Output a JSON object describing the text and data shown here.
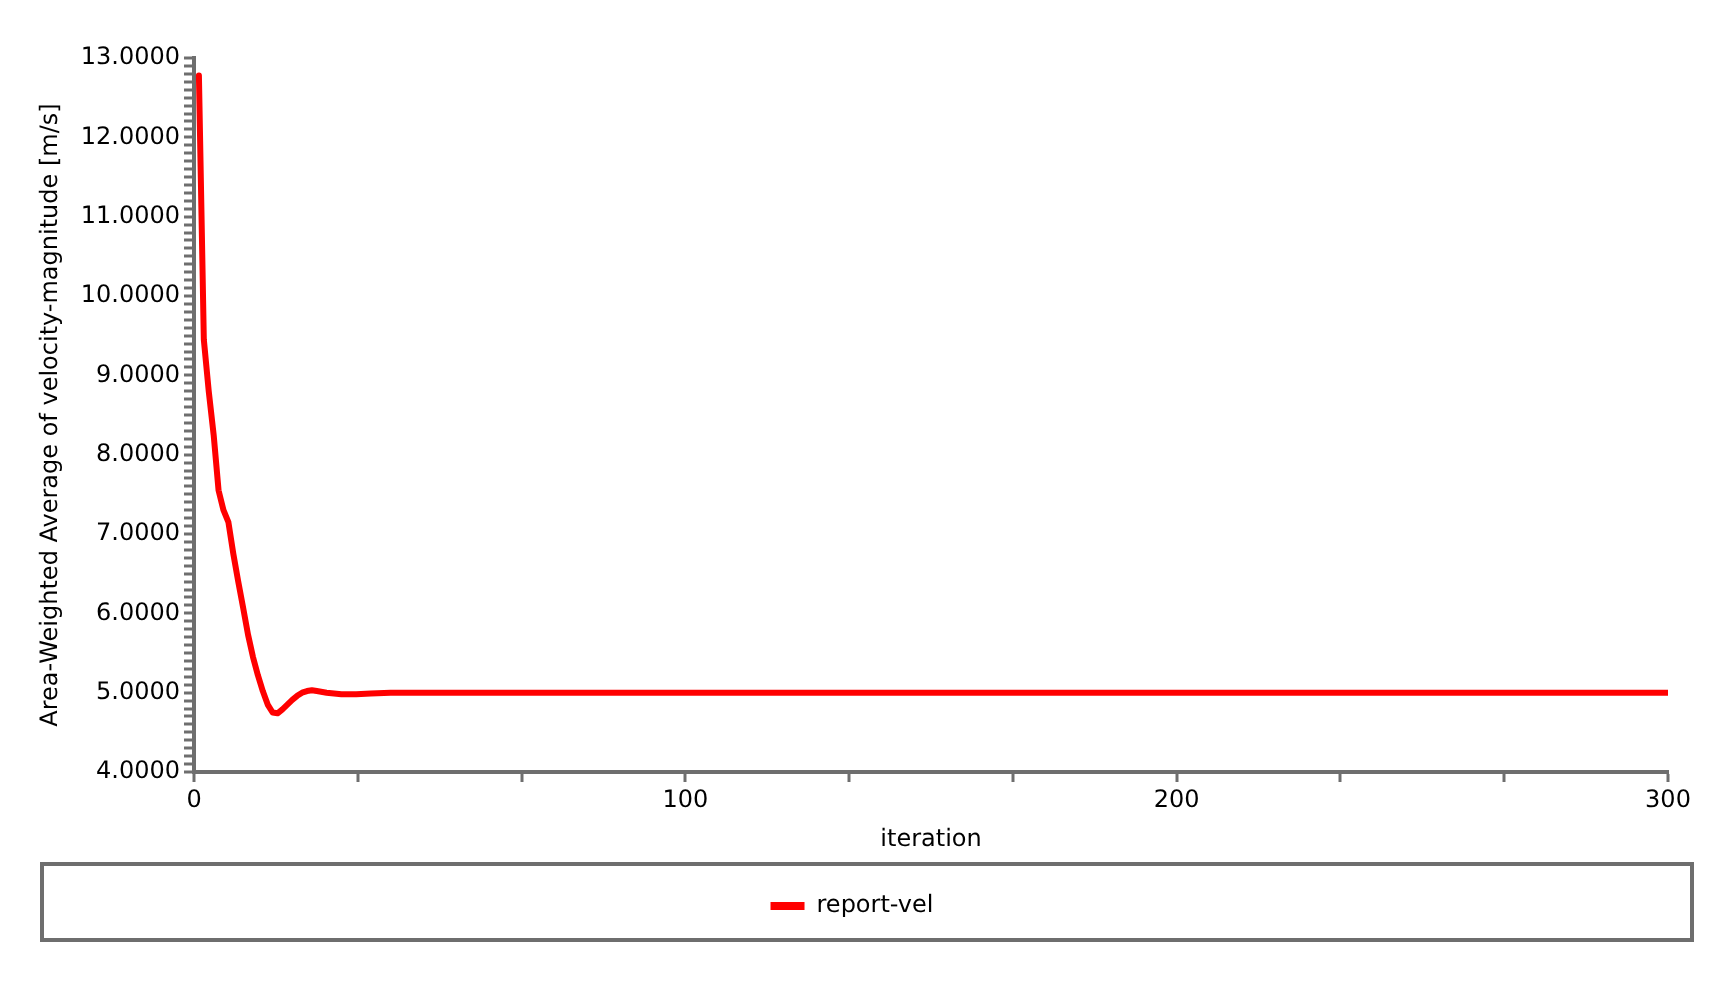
{
  "chart_data": {
    "type": "line",
    "xlabel": "iteration",
    "ylabel": "Area-Weighted Average of velocity-magnitude [m/s]",
    "x": [
      1,
      2,
      3,
      4,
      5,
      6,
      7,
      8,
      9,
      10,
      11,
      12,
      13,
      14,
      15,
      16,
      17,
      18,
      19,
      20,
      21,
      22,
      23,
      24,
      25,
      27,
      30,
      33,
      36,
      40,
      50,
      100,
      150,
      200,
      250,
      300
    ],
    "series": [
      {
        "name": "report-vel",
        "color": "#ff0000",
        "values": [
          12.78,
          9.45,
          8.8,
          8.25,
          7.55,
          7.3,
          7.15,
          6.75,
          6.4,
          6.07,
          5.73,
          5.45,
          5.22,
          5.02,
          4.85,
          4.75,
          4.74,
          4.79,
          4.85,
          4.91,
          4.96,
          5.0,
          5.02,
          5.03,
          5.02,
          5.0,
          4.98,
          4.98,
          4.99,
          5.0,
          5.0,
          5.0,
          5.0,
          5.0,
          5.0,
          5.0
        ]
      }
    ],
    "xlim": [
      0,
      300
    ],
    "xticks": [
      0,
      {
        "value": 33.3,
        "label": null
      },
      {
        "value": 66.7,
        "label": null
      },
      100,
      {
        "value": 133.3,
        "label": null
      },
      {
        "value": 166.7,
        "label": null
      },
      200,
      {
        "value": 233.3,
        "label": null
      },
      {
        "value": 266.7,
        "label": null
      },
      300
    ],
    "ylim": [
      4,
      13
    ],
    "yticks": [
      {
        "value": 4,
        "label": "4.0000"
      },
      {
        "value": 4.1,
        "label": null
      },
      {
        "value": 4.2,
        "label": null
      },
      {
        "value": 4.3,
        "label": null
      },
      {
        "value": 4.4,
        "label": null
      },
      {
        "value": 4.5,
        "label": null
      },
      {
        "value": 4.6,
        "label": null
      },
      {
        "value": 4.7,
        "label": null
      },
      {
        "value": 4.8,
        "label": null
      },
      {
        "value": 4.9,
        "label": null
      },
      {
        "value": 5,
        "label": "5.0000"
      },
      {
        "value": 5.1,
        "label": null
      },
      {
        "value": 5.2,
        "label": null
      },
      {
        "value": 5.3,
        "label": null
      },
      {
        "value": 5.4,
        "label": null
      },
      {
        "value": 5.5,
        "label": null
      },
      {
        "value": 5.6,
        "label": null
      },
      {
        "value": 5.7,
        "label": null
      },
      {
        "value": 5.8,
        "label": null
      },
      {
        "value": 5.9,
        "label": null
      },
      {
        "value": 6,
        "label": "6.0000"
      },
      {
        "value": 6.1,
        "label": null
      },
      {
        "value": 6.2,
        "label": null
      },
      {
        "value": 6.3,
        "label": null
      },
      {
        "value": 6.4,
        "label": null
      },
      {
        "value": 6.5,
        "label": null
      },
      {
        "value": 6.6,
        "label": null
      },
      {
        "value": 6.7,
        "label": null
      },
      {
        "value": 6.8,
        "label": null
      },
      {
        "value": 6.9,
        "label": null
      },
      {
        "value": 7,
        "label": "7.0000"
      },
      {
        "value": 7.1,
        "label": null
      },
      {
        "value": 7.2,
        "label": null
      },
      {
        "value": 7.3,
        "label": null
      },
      {
        "value": 7.4,
        "label": null
      },
      {
        "value": 7.5,
        "label": null
      },
      {
        "value": 7.6,
        "label": null
      },
      {
        "value": 7.7,
        "label": null
      },
      {
        "value": 7.8,
        "label": null
      },
      {
        "value": 7.9,
        "label": null
      },
      {
        "value": 8,
        "label": "8.0000"
      },
      {
        "value": 8.1,
        "label": null
      },
      {
        "value": 8.2,
        "label": null
      },
      {
        "value": 8.3,
        "label": null
      },
      {
        "value": 8.4,
        "label": null
      },
      {
        "value": 8.5,
        "label": null
      },
      {
        "value": 8.6,
        "label": null
      },
      {
        "value": 8.7,
        "label": null
      },
      {
        "value": 8.8,
        "label": null
      },
      {
        "value": 8.9,
        "label": null
      },
      {
        "value": 9,
        "label": "9.0000"
      },
      {
        "value": 9.1,
        "label": null
      },
      {
        "value": 9.2,
        "label": null
      },
      {
        "value": 9.3,
        "label": null
      },
      {
        "value": 9.4,
        "label": null
      },
      {
        "value": 9.5,
        "label": null
      },
      {
        "value": 9.6,
        "label": null
      },
      {
        "value": 9.7,
        "label": null
      },
      {
        "value": 9.8,
        "label": null
      },
      {
        "value": 9.9,
        "label": null
      },
      {
        "value": 10,
        "label": "10.0000"
      },
      {
        "value": 10.1,
        "label": null
      },
      {
        "value": 10.2,
        "label": null
      },
      {
        "value": 10.3,
        "label": null
      },
      {
        "value": 10.4,
        "label": null
      },
      {
        "value": 10.5,
        "label": null
      },
      {
        "value": 10.6,
        "label": null
      },
      {
        "value": 10.7,
        "label": null
      },
      {
        "value": 10.8,
        "label": null
      },
      {
        "value": 10.9,
        "label": null
      },
      {
        "value": 11,
        "label": "11.0000"
      },
      {
        "value": 11.1,
        "label": null
      },
      {
        "value": 11.2,
        "label": null
      },
      {
        "value": 11.3,
        "label": null
      },
      {
        "value": 11.4,
        "label": null
      },
      {
        "value": 11.5,
        "label": null
      },
      {
        "value": 11.6,
        "label": null
      },
      {
        "value": 11.7,
        "label": null
      },
      {
        "value": 11.8,
        "label": null
      },
      {
        "value": 11.9,
        "label": null
      },
      {
        "value": 12,
        "label": "12.0000"
      },
      {
        "value": 12.1,
        "label": null
      },
      {
        "value": 12.2,
        "label": null
      },
      {
        "value": 12.3,
        "label": null
      },
      {
        "value": 12.4,
        "label": null
      },
      {
        "value": 12.5,
        "label": null
      },
      {
        "value": 12.6,
        "label": null
      },
      {
        "value": 12.7,
        "label": null
      },
      {
        "value": 12.8,
        "label": null
      },
      {
        "value": 12.9,
        "label": null
      },
      {
        "value": 13,
        "label": "13.0000"
      }
    ],
    "grid": false,
    "legend": "bottom",
    "marker": "none",
    "line_style": "solid"
  }
}
